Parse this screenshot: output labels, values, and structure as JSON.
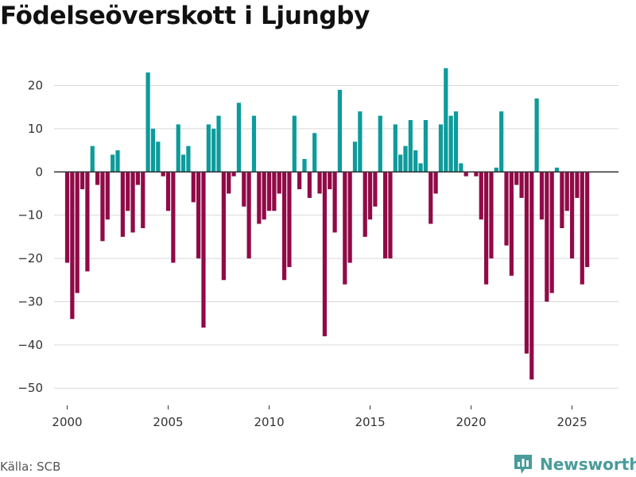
{
  "header": {
    "title": "Födelseöverskott i Ljungby"
  },
  "footer": {
    "source": "Källa: SCB",
    "brand": "Newsworthy"
  },
  "colors": {
    "positive": "#0d9b9b",
    "negative": "#910a47",
    "grid": "#d9d9d9",
    "zero_line": "#333333",
    "brand": "#4a9b9b"
  },
  "brand_icon": "bar-chart-icon",
  "chart_data": {
    "type": "bar",
    "title": "Födelseöverskott i Ljungby",
    "xlabel": "",
    "ylabel": "",
    "ylim": [
      -54,
      28
    ],
    "yticks": [
      20,
      10,
      0,
      -10,
      -20,
      -30,
      -40,
      -50
    ],
    "xlim": [
      1999.35,
      2027.3
    ],
    "xticks": [
      2000,
      2005,
      2010,
      2015,
      2020,
      2025
    ],
    "period_step": 0.25,
    "start": 2000.0,
    "values": [
      -21,
      -34,
      -28,
      -4,
      -23,
      6,
      -3,
      -16,
      -11,
      4,
      5,
      -15,
      -9,
      -14,
      -3,
      -13,
      23,
      10,
      7,
      -1,
      -9,
      -21,
      11,
      4,
      6,
      -7,
      -20,
      -36,
      11,
      10,
      13,
      -25,
      -5,
      -1,
      16,
      -8,
      -20,
      13,
      -12,
      -11,
      -9,
      -9,
      -5,
      -25,
      -22,
      13,
      -4,
      3,
      -6,
      9,
      -5,
      -38,
      -4,
      -14,
      19,
      -26,
      -21,
      7,
      14,
      -15,
      -11,
      -8,
      13,
      -20,
      -20,
      11,
      4,
      6,
      12,
      5,
      2,
      12,
      -12,
      -5,
      11,
      24,
      13,
      14,
      2,
      -1,
      0,
      -1,
      -11,
      -26,
      -20,
      1,
      14,
      -17,
      -24,
      -3,
      -6,
      -42,
      -48,
      17,
      -11,
      -30,
      -28,
      1,
      -13,
      -9,
      -20,
      -6,
      -26,
      -22
    ]
  }
}
